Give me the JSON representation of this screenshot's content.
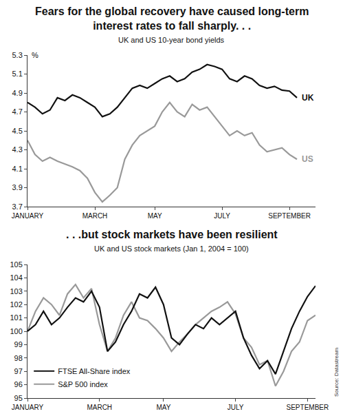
{
  "chart_data": [
    {
      "type": "line",
      "title": "Fears for the global recovery have caused long-term interest rates to fall sharply. . .",
      "subtitle": "UK and US 10-year bond yields",
      "ylabel": "%",
      "categories": [
        "JANUARY",
        null,
        null,
        null,
        null,
        null,
        null,
        null,
        null,
        "MARCH",
        null,
        null,
        null,
        null,
        null,
        null,
        null,
        "MAY",
        null,
        null,
        null,
        null,
        null,
        null,
        null,
        null,
        "JULY",
        null,
        null,
        null,
        null,
        null,
        null,
        null,
        null,
        "SEPTEMBER",
        null
      ],
      "series": [
        {
          "name": "UK",
          "color": "#111111",
          "values": [
            4.8,
            4.75,
            4.68,
            4.72,
            4.85,
            4.82,
            4.88,
            4.85,
            4.8,
            4.75,
            4.65,
            4.68,
            4.75,
            4.85,
            4.95,
            4.98,
            4.95,
            5.0,
            5.05,
            5.08,
            5.02,
            5.05,
            5.12,
            5.15,
            5.2,
            5.18,
            5.15,
            5.05,
            5.02,
            5.08,
            5.05,
            4.98,
            4.95,
            4.97,
            4.93,
            4.92,
            4.85
          ]
        },
        {
          "name": "US",
          "color": "#999999",
          "values": [
            4.4,
            4.25,
            4.18,
            4.22,
            4.18,
            4.15,
            4.12,
            4.08,
            4.0,
            3.85,
            3.75,
            3.82,
            3.9,
            4.2,
            4.35,
            4.45,
            4.5,
            4.55,
            4.7,
            4.8,
            4.7,
            4.65,
            4.78,
            4.72,
            4.75,
            4.65,
            4.55,
            4.45,
            4.5,
            4.45,
            4.48,
            4.35,
            4.28,
            4.3,
            4.32,
            4.25,
            4.2
          ]
        }
      ],
      "ylim": [
        3.7,
        5.3
      ],
      "yticks": [
        3.7,
        3.9,
        4.1,
        4.3,
        4.5,
        4.7,
        4.9,
        5.1,
        5.3
      ],
      "grid": false
    },
    {
      "type": "line",
      "title": ". . .but stock markets have been resilient",
      "subtitle": "UK and US stock markets (Jan 1, 2004 = 100)",
      "annotations": [
        {
          "text": "Source: Datastream"
        }
      ],
      "categories": [
        "JANUARY",
        null,
        null,
        null,
        null,
        null,
        null,
        null,
        null,
        "MARCH",
        null,
        null,
        null,
        null,
        null,
        null,
        null,
        "MAY",
        null,
        null,
        null,
        null,
        null,
        null,
        null,
        null,
        "JULY",
        null,
        null,
        null,
        null,
        null,
        null,
        null,
        null,
        "SEPTEMBER",
        null
      ],
      "series": [
        {
          "name": "FTSE All-Share index",
          "color": "#111111",
          "values": [
            100.0,
            100.5,
            101.5,
            100.5,
            101.0,
            101.8,
            102.5,
            102.2,
            103.0,
            101.8,
            98.5,
            99.2,
            100.5,
            101.5,
            102.8,
            102.5,
            103.3,
            102.0,
            99.5,
            99.0,
            99.8,
            100.5,
            100.2,
            101.0,
            100.5,
            101.0,
            101.5,
            99.5,
            98.2,
            97.2,
            97.8,
            96.8,
            98.5,
            100.2,
            101.5,
            102.6,
            103.4
          ]
        },
        {
          "name": "S&P 500 index",
          "color": "#999999",
          "values": [
            100.0,
            101.5,
            102.5,
            102.0,
            101.2,
            102.8,
            103.5,
            102.5,
            103.2,
            100.5,
            98.5,
            99.5,
            101.2,
            102.2,
            101.0,
            100.8,
            100.2,
            99.5,
            98.5,
            99.2,
            99.8,
            100.5,
            101.0,
            101.5,
            101.8,
            102.2,
            101.3,
            99.5,
            98.8,
            97.5,
            97.8,
            95.9,
            97.0,
            98.5,
            99.2,
            100.8,
            101.2
          ]
        }
      ],
      "ylim": [
        95,
        105
      ],
      "yticks": [
        95,
        96,
        97,
        98,
        99,
        100,
        101,
        102,
        103,
        104,
        105
      ],
      "grid": false,
      "legend": "lower left"
    }
  ]
}
